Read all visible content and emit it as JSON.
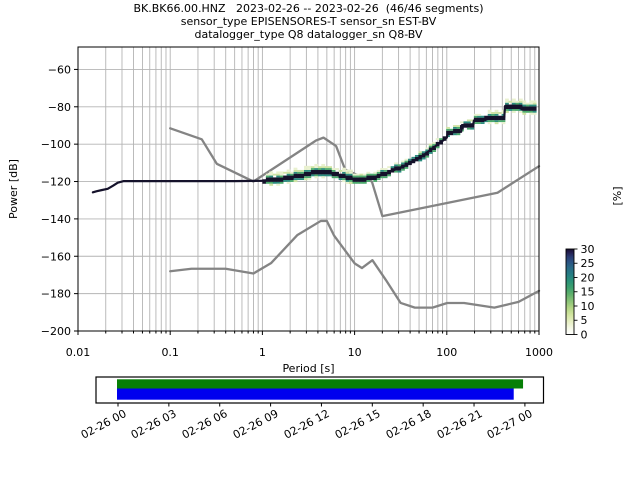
{
  "title": {
    "line1": "BK.BK66.00.HNZ   2023-02-26 -- 2023-02-26  (46/46 segments)",
    "line2": "sensor_type EPISENSORES-T sensor_sn EST-BV",
    "line3": "datalogger_type Q8 datalogger_sn Q8-BV"
  },
  "chart_data": {
    "type": "heatmap",
    "title": "PPSD probability density (percent) vs period",
    "xlabel": "Period [s]",
    "ylabel": "Power [dB]",
    "xscale": "log",
    "xlim": [
      0.01,
      1000
    ],
    "ylim": [
      -200,
      -48
    ],
    "grid": true,
    "xticks": {
      "values": [
        0.01,
        0.1,
        1,
        10,
        100,
        1000
      ],
      "labels": [
        "0.01",
        "0.1",
        "1",
        "10",
        "100",
        "1000"
      ]
    },
    "yticks": {
      "values": [
        -60,
        -80,
        -100,
        -120,
        -140,
        -160,
        -180,
        -200
      ],
      "labels": [
        "−60",
        "−80",
        "−100",
        "−120",
        "−140",
        "−160",
        "−180",
        "−200"
      ]
    },
    "colorbar": {
      "label": "[%]",
      "tick_values": [
        0,
        5,
        10,
        15,
        20,
        25,
        30
      ],
      "tick_labels": [
        "0",
        "5",
        "10",
        "15",
        "20",
        "25",
        "30"
      ],
      "range": [
        0,
        30
      ],
      "gradient_stops": [
        [
          0.0,
          "#ffffff"
        ],
        [
          0.07,
          "#f6f9e8"
        ],
        [
          0.15,
          "#e7efc3"
        ],
        [
          0.23,
          "#d2e5a0"
        ],
        [
          0.31,
          "#b3d685"
        ],
        [
          0.39,
          "#8ac377"
        ],
        [
          0.47,
          "#60b06c"
        ],
        [
          0.55,
          "#3ca06e"
        ],
        [
          0.63,
          "#2a9179"
        ],
        [
          0.7,
          "#267e83"
        ],
        [
          0.78,
          "#296a87"
        ],
        [
          0.85,
          "#2b5282"
        ],
        [
          0.91,
          "#2a3a72"
        ],
        [
          0.96,
          "#241e50"
        ],
        [
          1.0,
          "#150d2e"
        ]
      ]
    },
    "noise_models": {
      "color": "#848484",
      "nhnm": [
        [
          0.1,
          -91.5
        ],
        [
          0.22,
          -97.4
        ],
        [
          0.32,
          -110.5
        ],
        [
          0.8,
          -120.0
        ],
        [
          3.8,
          -98.1
        ],
        [
          4.6,
          -96.5
        ],
        [
          6.3,
          -101.0
        ],
        [
          7.9,
          -113.6
        ],
        [
          15.4,
          -120.0
        ],
        [
          20,
          -138.5
        ],
        [
          354.8,
          -126.0
        ],
        [
          1000,
          -111.8
        ]
      ],
      "nlnm": [
        [
          0.1,
          -168.0
        ],
        [
          0.17,
          -166.7
        ],
        [
          0.4,
          -166.7
        ],
        [
          0.8,
          -169.2
        ],
        [
          1.24,
          -163.7
        ],
        [
          2.4,
          -148.6
        ],
        [
          4.3,
          -141.1
        ],
        [
          5.0,
          -141.1
        ],
        [
          6.0,
          -149.0
        ],
        [
          10.0,
          -163.8
        ],
        [
          12.0,
          -166.3
        ],
        [
          15.6,
          -162.1
        ],
        [
          21.9,
          -172.8
        ],
        [
          31.6,
          -185.0
        ],
        [
          45,
          -187.5
        ],
        [
          70,
          -187.5
        ],
        [
          101,
          -185.0
        ],
        [
          154,
          -185.0
        ],
        [
          328,
          -187.5
        ],
        [
          600,
          -184.4
        ],
        [
          1000,
          -178.5
        ]
      ]
    },
    "psd_mode_line": {
      "color": "#15122b",
      "points": [
        [
          0.0145,
          -125.8
        ],
        [
          0.016,
          -125.2
        ],
        [
          0.018,
          -124.6
        ],
        [
          0.021,
          -123.9
        ],
        [
          0.024,
          -122.2
        ],
        [
          0.027,
          -120.6
        ],
        [
          0.031,
          -119.8
        ],
        [
          0.5,
          -119.8
        ],
        [
          1.0,
          -119.6
        ],
        [
          1.3,
          -119.2
        ],
        [
          1.7,
          -118.6
        ],
        [
          2.2,
          -117.6
        ],
        [
          2.8,
          -116.5
        ],
        [
          3.5,
          -115.4
        ],
        [
          4.2,
          -114.9
        ],
        [
          5.0,
          -115.1
        ],
        [
          6.0,
          -116.0
        ],
        [
          7.2,
          -117.1
        ],
        [
          8.6,
          -118.1
        ],
        [
          10.5,
          -118.8
        ],
        [
          13,
          -118.7
        ],
        [
          16,
          -117.8
        ],
        [
          20,
          -116.4
        ],
        [
          25,
          -114.5
        ],
        [
          32,
          -112.3
        ],
        [
          40,
          -110.2
        ],
        [
          50,
          -107.5
        ],
        [
          60,
          -104.8
        ],
        [
          72,
          -101.8
        ],
        [
          85,
          -99.2
        ],
        [
          100,
          -96.5
        ],
        [
          103,
          -93.6
        ],
        [
          143,
          -93.4
        ],
        [
          146,
          -89.8
        ],
        [
          193,
          -89.6
        ],
        [
          197,
          -87.3
        ],
        [
          263,
          -87.1
        ],
        [
          267,
          -85.8
        ],
        [
          420,
          -85.5
        ],
        [
          428,
          -79.6
        ],
        [
          635,
          -79.6
        ],
        [
          645,
          -81.3
        ],
        [
          870,
          -81.3
        ]
      ]
    },
    "psd_band": {
      "band_start": 1.0,
      "band_end": 870,
      "cell_colors": {
        "light": "#e9f1cf",
        "lightgreen": "#cfe3a3",
        "green": "#4cab6d",
        "teal": "#2b8c7e",
        "dark": "#15122b"
      }
    }
  },
  "timeline": {
    "tick_labels": [
      "02-26 00",
      "02-26 03",
      "02-26 06",
      "02-26 09",
      "02-26 12",
      "02-26 15",
      "02-26 18",
      "02-26 21",
      "02-27 00"
    ],
    "tick_hours": [
      0,
      3,
      6,
      9,
      12,
      15,
      18,
      21,
      24
    ],
    "coverage_bars": [
      {
        "name": "coverage-top",
        "color": "#067f06",
        "start_hour": 0,
        "end_hour": 23.95
      },
      {
        "name": "coverage-bottom",
        "color": "#0000ee",
        "start_hour": 0,
        "end_hour": 23.4
      }
    ]
  }
}
